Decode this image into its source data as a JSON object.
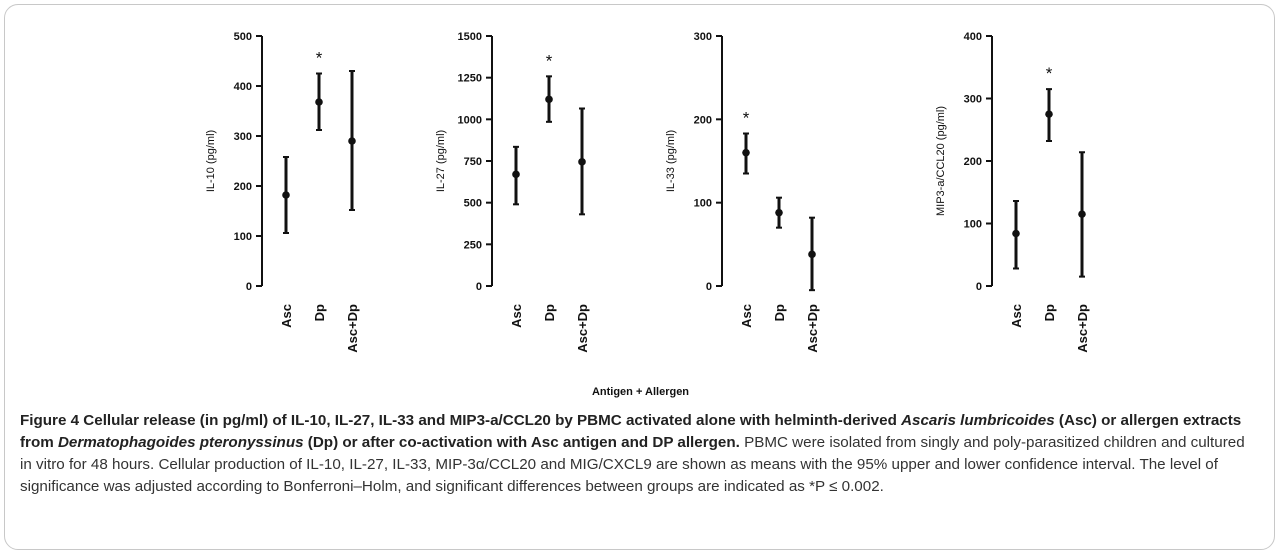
{
  "chart_data": [
    {
      "type": "errorbar",
      "ylabel": "IL-10 (pg/ml)",
      "ylim": [
        0,
        500
      ],
      "yticks": [
        0,
        100,
        200,
        300,
        400,
        500
      ],
      "categories": [
        "Asc",
        "Dp",
        "Asc+Dp"
      ],
      "mean": [
        182,
        368,
        290
      ],
      "lower": [
        106,
        312,
        152
      ],
      "upper": [
        258,
        425,
        430
      ],
      "significance": [
        "",
        "*",
        ""
      ]
    },
    {
      "type": "errorbar",
      "ylabel": "IL-27 (pg/ml)",
      "ylim": [
        0,
        1500
      ],
      "yticks": [
        0,
        250,
        500,
        750,
        1000,
        1250,
        1500
      ],
      "categories": [
        "Asc",
        "Dp",
        "Asc+Dp"
      ],
      "mean": [
        670,
        1120,
        745
      ],
      "lower": [
        490,
        985,
        430
      ],
      "upper": [
        835,
        1258,
        1065
      ],
      "significance": [
        "",
        "*",
        ""
      ]
    },
    {
      "type": "errorbar",
      "ylabel": "IL-33 (pg/ml)",
      "ylim": [
        0,
        300
      ],
      "yticks": [
        0,
        100,
        200,
        300
      ],
      "categories": [
        "Asc",
        "Dp",
        "Asc+Dp"
      ],
      "mean": [
        160,
        88,
        38
      ],
      "lower": [
        135,
        70,
        -5
      ],
      "upper": [
        183,
        106,
        82
      ],
      "significance": [
        "*",
        "",
        ""
      ]
    },
    {
      "type": "errorbar",
      "ylabel": "MIP3-a/CCL20 (pg/ml)",
      "ylim": [
        0,
        400
      ],
      "yticks": [
        0,
        100,
        200,
        300,
        400
      ],
      "categories": [
        "Asc",
        "Dp",
        "Asc+Dp"
      ],
      "mean": [
        84,
        275,
        115
      ],
      "lower": [
        28,
        232,
        15
      ],
      "upper": [
        136,
        315,
        214
      ],
      "significance": [
        "",
        "*",
        ""
      ]
    }
  ],
  "xaxis_title": "Antigen + Allergen",
  "caption": {
    "head_1": "Figure 4 Cellular release (in pg/ml) of IL-10, IL-27, IL-33 and MIP3-a/CCL20 by PBMC activated alone with helminth-derived ",
    "head_italic_1": "Ascaris lumbricoides",
    "head_2": " (Asc) or allergen extracts from ",
    "head_italic_2": "Dermatophagoides pteronyssinus",
    "head_3": " (Dp) or after co-activation with Asc antigen and DP allergen.",
    "body": " PBMC were isolated from singly and poly-parasitized children and cultured in vitro for 48 hours. Cellular production of IL-10, IL-27, IL-33, MIP-3α/CCL20 and MIG/CXCL9 are shown as means with the 95% upper and lower confidence interval. The level of significance was adjusted according to Bonferroni–Holm, and significant differences between groups are indicated as *P ≤ 0.002."
  }
}
